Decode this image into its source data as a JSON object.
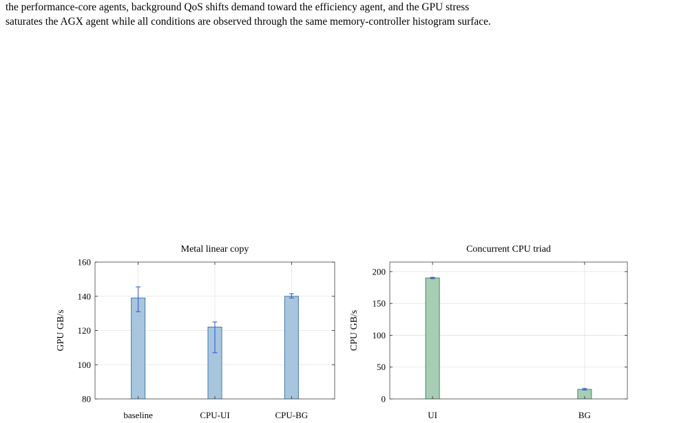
{
  "caption": {
    "line1": "the performance-core agents, background QoS shifts demand toward the efficiency agent, and the GPU stress",
    "line2": "saturates the AGX agent while all conditions are observed through the same memory-controller histogram surface."
  },
  "chart_data": [
    {
      "type": "bar",
      "title": "Metal linear copy",
      "ylabel": "GPU GB/s",
      "xlabel": "",
      "categories": [
        "baseline",
        "CPU-UI",
        "CPU-BG"
      ],
      "values": [
        139,
        122,
        140
      ],
      "error_low": [
        131,
        107,
        139
      ],
      "error_high": [
        145.5,
        125,
        141.5
      ],
      "ylim": [
        80,
        160
      ],
      "yticks": [
        80,
        100,
        120,
        140,
        160
      ],
      "grid": true,
      "bar_color": "#a7c6de",
      "bar_edge": "#3d78ad",
      "error_color": "#2a4fd0"
    },
    {
      "type": "bar",
      "title": "Concurrent CPU triad",
      "ylabel": "CPU GB/s",
      "xlabel": "",
      "categories": [
        "UI",
        "BG"
      ],
      "values": [
        190,
        15
      ],
      "error_low": [
        189,
        14
      ],
      "error_high": [
        191,
        16.5
      ],
      "ylim": [
        0,
        215
      ],
      "yticks": [
        0,
        50,
        100,
        150,
        200
      ],
      "grid": true,
      "bar_color": "#a8cdb5",
      "bar_edge": "#3f8a5c",
      "error_color": "#2a4fd0"
    }
  ]
}
